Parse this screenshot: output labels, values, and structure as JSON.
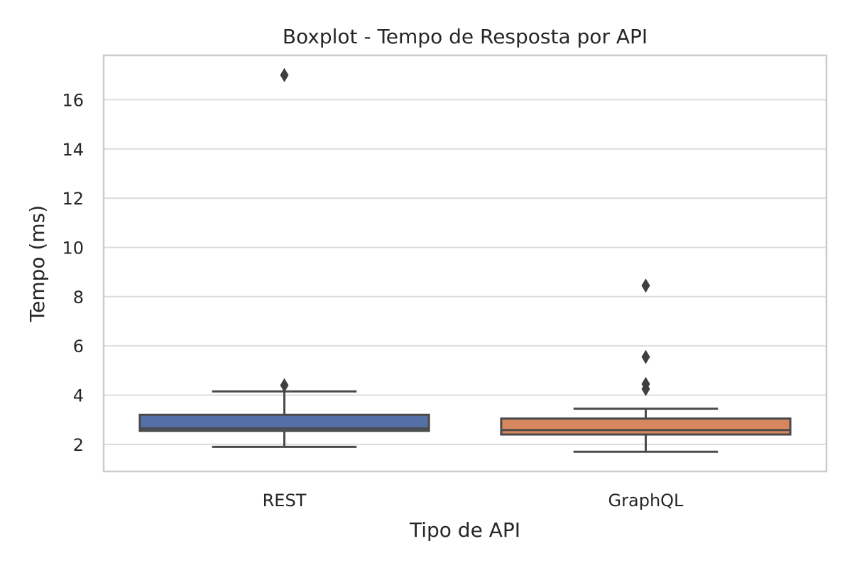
{
  "chart_data": {
    "type": "box",
    "title": "Boxplot - Tempo de Resposta por API",
    "xlabel": "Tipo de API",
    "ylabel": "Tempo (ms)",
    "ylim": [
      0.9,
      17.8
    ],
    "yticks": [
      2,
      4,
      6,
      8,
      10,
      12,
      14,
      16
    ],
    "grid": true,
    "categories": [
      "REST",
      "GraphQL"
    ],
    "series": [
      {
        "category": "REST",
        "color": "#5470a6",
        "whisker_low": 1.9,
        "q1": 2.55,
        "median": 2.65,
        "q3": 3.2,
        "whisker_high": 4.15,
        "outliers": [
          4.4,
          17.0
        ]
      },
      {
        "category": "GraphQL",
        "color": "#d6875d",
        "whisker_low": 1.7,
        "q1": 2.4,
        "median": 2.58,
        "q3": 3.05,
        "whisker_high": 3.45,
        "outliers": [
          4.25,
          4.45,
          5.55,
          8.45
        ]
      }
    ]
  }
}
